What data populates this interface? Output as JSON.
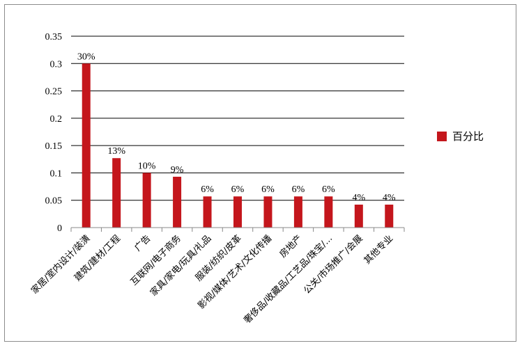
{
  "chart_data": {
    "type": "bar",
    "categories": [
      "家居/室内设计/装潢",
      "建筑/建材/工程",
      "广告",
      "互联网/电子商务",
      "家具/家电/玩具/礼品",
      "服装/纺织/皮革",
      "影视/媒体/艺术/文化传播",
      "房地产",
      "奢侈品/收藏品/工艺品/珠宝/...",
      "公关/市场推广/会展",
      "其他专业"
    ],
    "series": [
      {
        "name": "百分比",
        "values": [
          0.3,
          0.127,
          0.1,
          0.093,
          0.057,
          0.057,
          0.057,
          0.057,
          0.057,
          0.042,
          0.042
        ],
        "labels": [
          "30%",
          "13%",
          "10%",
          "9%",
          "6%",
          "6%",
          "6%",
          "6%",
          "6%",
          "4%",
          "4%"
        ]
      }
    ],
    "yticks": [
      "0",
      "0.05",
      "0.1",
      "0.15",
      "0.2",
      "0.25",
      "0.3",
      "0.35"
    ],
    "ylim": [
      0,
      0.35
    ],
    "grid": true,
    "legend": "right",
    "colors": {
      "bar": "#c4161c",
      "grid": "#000000",
      "axis": "#888888"
    }
  }
}
